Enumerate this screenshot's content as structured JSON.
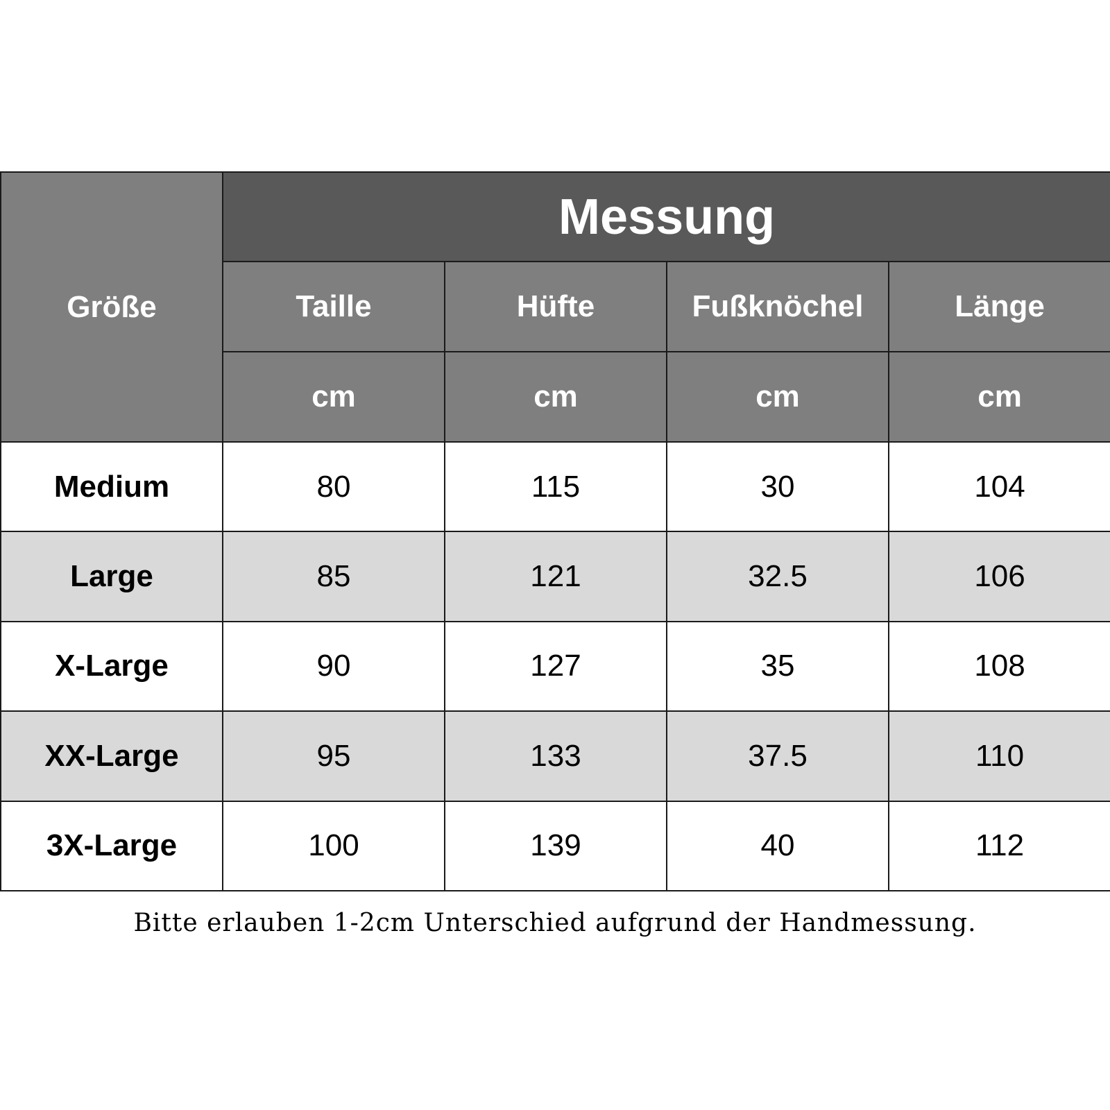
{
  "table": {
    "size_header": "Größe",
    "measure_header": "Messung",
    "columns": [
      "Taille",
      "Hüfte",
      "Fußknöchel",
      "Länge"
    ],
    "units": [
      "cm",
      "cm",
      "cm",
      "cm"
    ],
    "rows": [
      {
        "size": "Medium",
        "values": [
          "80",
          "115",
          "30",
          "104"
        ]
      },
      {
        "size": "Large",
        "values": [
          "85",
          "121",
          "32.5",
          "106"
        ]
      },
      {
        "size": "X-Large",
        "values": [
          "90",
          "127",
          "35",
          "108"
        ]
      },
      {
        "size": "XX-Large",
        "values": [
          "95",
          "133",
          "37.5",
          "110"
        ]
      },
      {
        "size": "3X-Large",
        "values": [
          "100",
          "139",
          "40",
          "112"
        ]
      }
    ]
  },
  "footnote": "Bitte erlauben 1-2cm Unterschied aufgrund der Handmessung.",
  "colors": {
    "header_dark": "#595959",
    "header_mid": "#7f7f7f",
    "row_alt": "#d9d9d9",
    "row_plain": "#ffffff"
  }
}
